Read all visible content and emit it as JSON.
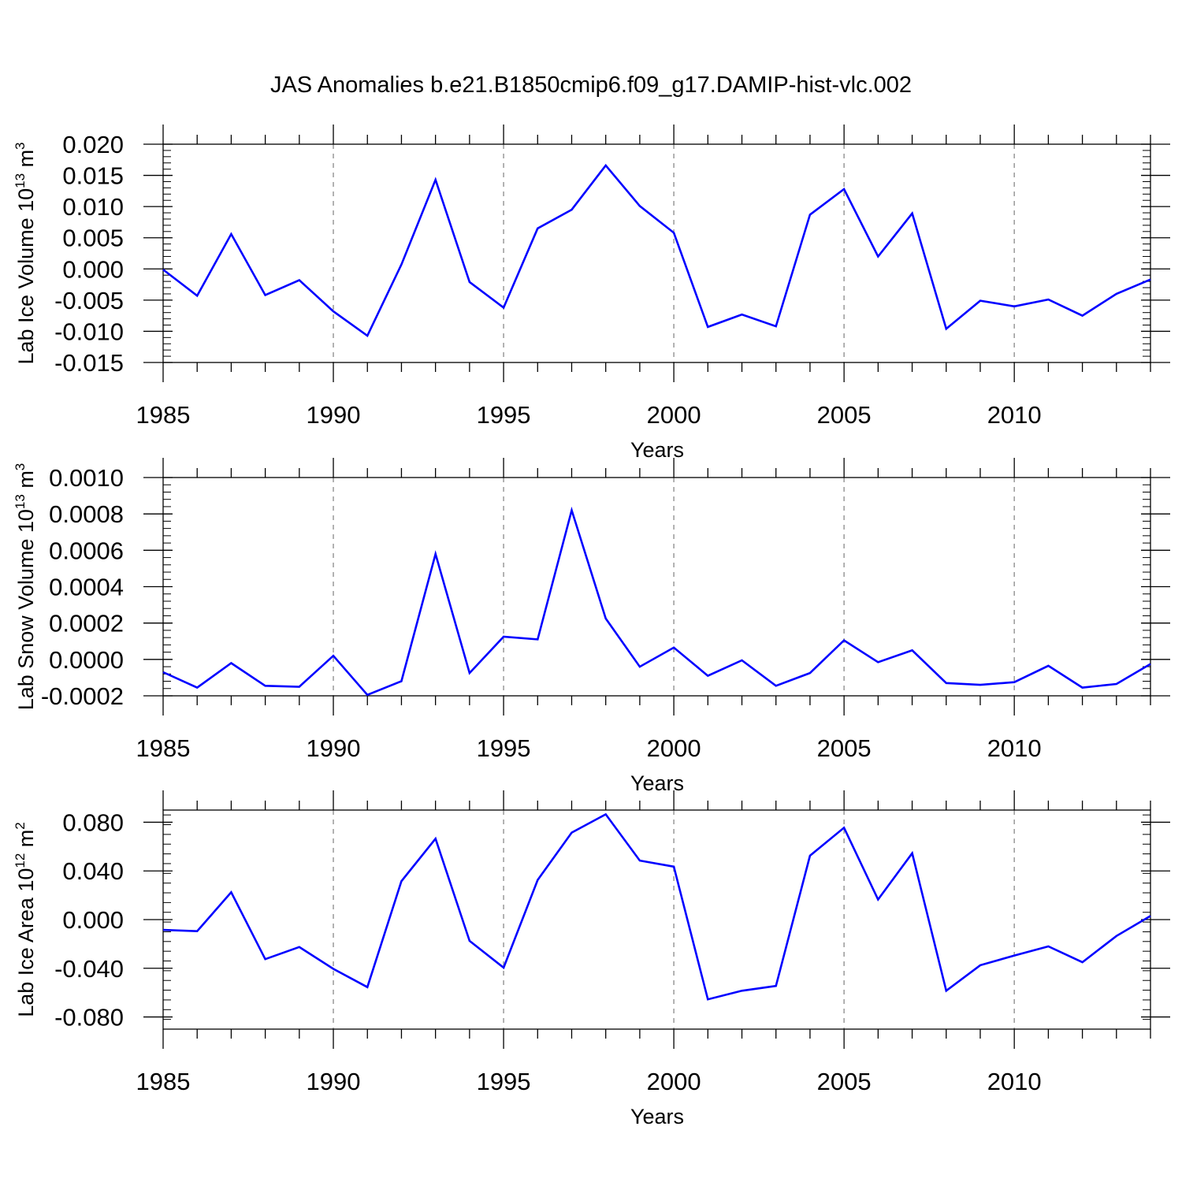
{
  "title": "JAS Anomalies b.e21.B1850cmip6.f09_g17.DAMIP-hist-vlc.002",
  "colors": {
    "line": "#0000ff",
    "axis": "#000000",
    "grid": "#999999"
  },
  "chart_data": [
    {
      "type": "line",
      "ylabel": "Lab Ice Volume 10",
      "ylabel_exp": "13",
      "ylabel_unit": " m",
      "ylabel_unit_exp": "3",
      "xlabel": "Years",
      "xlim": [
        1985,
        2014
      ],
      "ylim": [
        -0.015,
        0.02
      ],
      "yticks": [
        -0.015,
        -0.01,
        -0.005,
        0.0,
        0.005,
        0.01,
        0.015,
        0.02
      ],
      "yticklabels": [
        "-0.015",
        "-0.010",
        "-0.005",
        "0.000",
        "0.005",
        "0.010",
        "0.015",
        "0.020"
      ],
      "xticks": [
        1985,
        1990,
        1995,
        2000,
        2005,
        2010
      ],
      "xticklabels": [
        "1985",
        "1990",
        "1995",
        "2000",
        "2005",
        "2010"
      ],
      "grid_x": [
        1990,
        1995,
        2000,
        2005,
        2010
      ],
      "x": [
        1985,
        1986,
        1987,
        1988,
        1989,
        1990,
        1991,
        1992,
        1993,
        1994,
        1995,
        1996,
        1997,
        1998,
        1999,
        2000,
        2001,
        2002,
        2003,
        2004,
        2005,
        2006,
        2007,
        2008,
        2009,
        2010,
        2011,
        2012,
        2013,
        2014
      ],
      "y": [
        -0.0001,
        -0.0043,
        0.0056,
        -0.0042,
        -0.0018,
        -0.0068,
        -0.0107,
        0.0007,
        0.0143,
        -0.0021,
        -0.0062,
        0.0065,
        0.0095,
        0.0166,
        0.0101,
        0.0058,
        -0.0093,
        -0.0073,
        -0.0092,
        0.0087,
        0.0128,
        0.002,
        0.0089,
        -0.0096,
        -0.0051,
        -0.006,
        -0.0049,
        -0.0075,
        -0.004,
        -0.0017
      ]
    },
    {
      "type": "line",
      "ylabel": "Lab Snow Volume 10",
      "ylabel_exp": "13",
      "ylabel_unit": " m",
      "ylabel_unit_exp": "3",
      "xlabel": "Years",
      "xlim": [
        1985,
        2014
      ],
      "ylim": [
        -0.0002,
        0.001
      ],
      "yticks": [
        -0.0002,
        0.0,
        0.0002,
        0.0004,
        0.0006,
        0.0008,
        0.001
      ],
      "yticklabels": [
        "-0.0002",
        "0.0000",
        "0.0002",
        "0.0004",
        "0.0006",
        "0.0008",
        "0.0010"
      ],
      "xticks": [
        1985,
        1990,
        1995,
        2000,
        2005,
        2010
      ],
      "xticklabels": [
        "1985",
        "1990",
        "1995",
        "2000",
        "2005",
        "2010"
      ],
      "grid_x": [
        1990,
        1995,
        2000,
        2005,
        2010
      ],
      "x": [
        1985,
        1986,
        1987,
        1988,
        1989,
        1990,
        1991,
        1992,
        1993,
        1994,
        1995,
        1996,
        1997,
        1998,
        1999,
        2000,
        2001,
        2002,
        2003,
        2004,
        2005,
        2006,
        2007,
        2008,
        2009,
        2010,
        2011,
        2012,
        2013,
        2014
      ],
      "y": [
        -7e-05,
        -0.000155,
        -2e-05,
        -0.000145,
        -0.00015,
        2e-05,
        -0.000195,
        -0.00012,
        0.00058,
        -7.5e-05,
        0.000125,
        0.00011,
        0.00082,
        0.000225,
        -4e-05,
        6.5e-05,
        -9e-05,
        -5e-06,
        -0.000145,
        -7.5e-05,
        0.000105,
        -1.5e-05,
        5e-05,
        -0.00013,
        -0.00014,
        -0.000125,
        -3.5e-05,
        -0.000155,
        -0.000135,
        -2.5e-05
      ]
    },
    {
      "type": "line",
      "ylabel": "Lab Ice Area 10",
      "ylabel_exp": "12",
      "ylabel_unit": " m",
      "ylabel_unit_exp": "2",
      "xlabel": "Years",
      "xlim": [
        1985,
        2014
      ],
      "ylim": [
        -0.09,
        0.09
      ],
      "yticks": [
        -0.08,
        -0.04,
        0.0,
        0.04,
        0.08
      ],
      "yticklabels": [
        "-0.080",
        "-0.040",
        "0.000",
        "0.040",
        "0.080"
      ],
      "xticks": [
        1985,
        1990,
        1995,
        2000,
        2005,
        2010
      ],
      "xticklabels": [
        "1985",
        "1990",
        "1995",
        "2000",
        "2005",
        "2010"
      ],
      "grid_x": [
        1990,
        1995,
        2000,
        2005,
        2010
      ],
      "x": [
        1985,
        1986,
        1987,
        1988,
        1989,
        1990,
        1991,
        1992,
        1993,
        1994,
        1995,
        1996,
        1997,
        1998,
        1999,
        2000,
        2001,
        2002,
        2003,
        2004,
        2005,
        2006,
        2007,
        2008,
        2009,
        2010,
        2011,
        2012,
        2013,
        2014
      ],
      "y": [
        -0.0085,
        -0.0095,
        0.0225,
        -0.0325,
        -0.0225,
        -0.0405,
        -0.0555,
        0.0315,
        0.0665,
        -0.0175,
        -0.0395,
        0.0325,
        0.0715,
        0.0865,
        0.0485,
        0.0435,
        -0.0655,
        -0.0585,
        -0.0545,
        0.0525,
        0.0755,
        0.0165,
        0.0545,
        -0.0585,
        -0.0375,
        -0.0295,
        -0.022,
        -0.035,
        -0.0135,
        0.003
      ]
    }
  ]
}
